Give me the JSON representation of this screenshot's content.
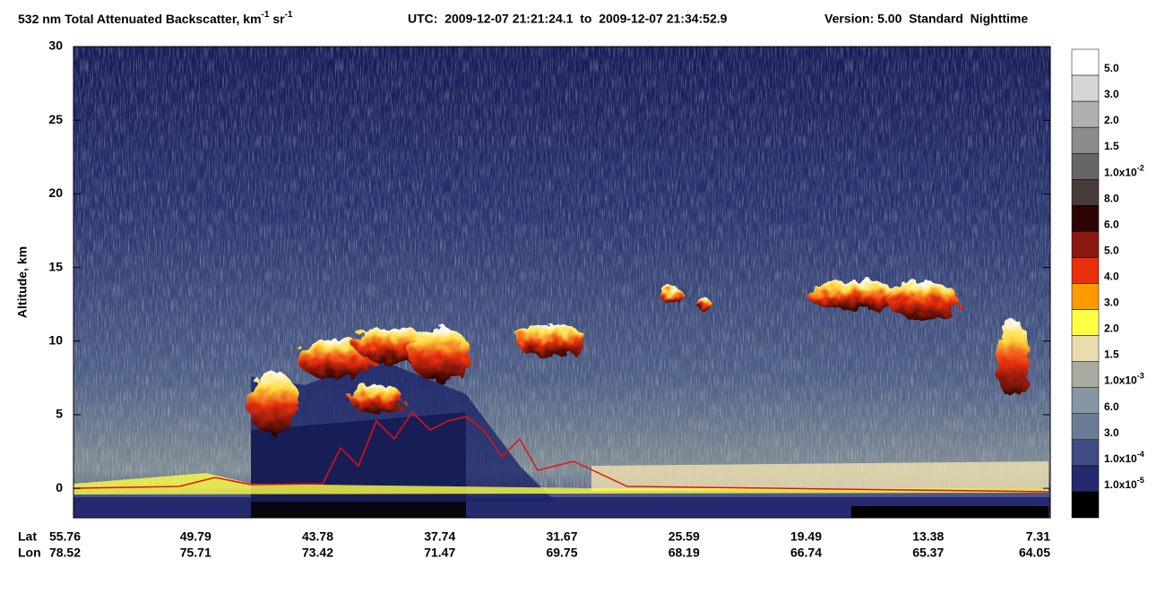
{
  "chart_data": {
    "type": "curtain",
    "title": [
      "532 nm Total Attenuated Backscatter, km",
      "-1",
      " sr",
      "-1"
    ],
    "utc": "UTC:  2009-12-07 21:21:24.1  to  2009-12-07 21:34:52.9",
    "version": "Version: 5.00  Standard  Nighttime",
    "ylabel": "Altitude, km",
    "ylim": [
      -2,
      30
    ],
    "yticks": [
      0,
      5,
      10,
      15,
      20,
      25,
      30
    ],
    "x_rows": [
      {
        "name": "Lat",
        "values": [
          55.76,
          49.79,
          43.78,
          37.74,
          31.67,
          25.59,
          19.49,
          13.38,
          7.31
        ]
      },
      {
        "name": "Lon",
        "values": [
          78.52,
          75.71,
          73.42,
          71.47,
          69.75,
          68.19,
          66.74,
          65.37,
          64.05
        ]
      }
    ],
    "colorbar": {
      "colors": [
        "#ffffff",
        "#d6d6d6",
        "#b0b0b0",
        "#8c8c8c",
        "#666666",
        "#473c3a",
        "#2e0303",
        "#8c1a12",
        "#e8300c",
        "#ff9a00",
        "#ffff44",
        "#e9dcae",
        "#a9aaa0",
        "#8796a3",
        "#6a7d97",
        "#3e4e82",
        "#252a6e",
        "#000000"
      ],
      "labels": [
        {
          "text": "5.0"
        },
        {
          "text": "3.0"
        },
        {
          "text": "2.0"
        },
        {
          "text": "1.5"
        },
        {
          "text": "1.0x10",
          "sup": "-2"
        },
        {
          "text": "8.0"
        },
        {
          "text": "6.0"
        },
        {
          "text": "5.0"
        },
        {
          "text": "4.0"
        },
        {
          "text": "3.0"
        },
        {
          "text": "2.0"
        },
        {
          "text": "1.5"
        },
        {
          "text": "1.0x10",
          "sup": "-3"
        },
        {
          "text": "6.0"
        },
        {
          "text": "3.0"
        },
        {
          "text": "1.0x10",
          "sup": "-4"
        },
        {
          "text": "1.0x10",
          "sup": "-5"
        }
      ]
    }
  }
}
